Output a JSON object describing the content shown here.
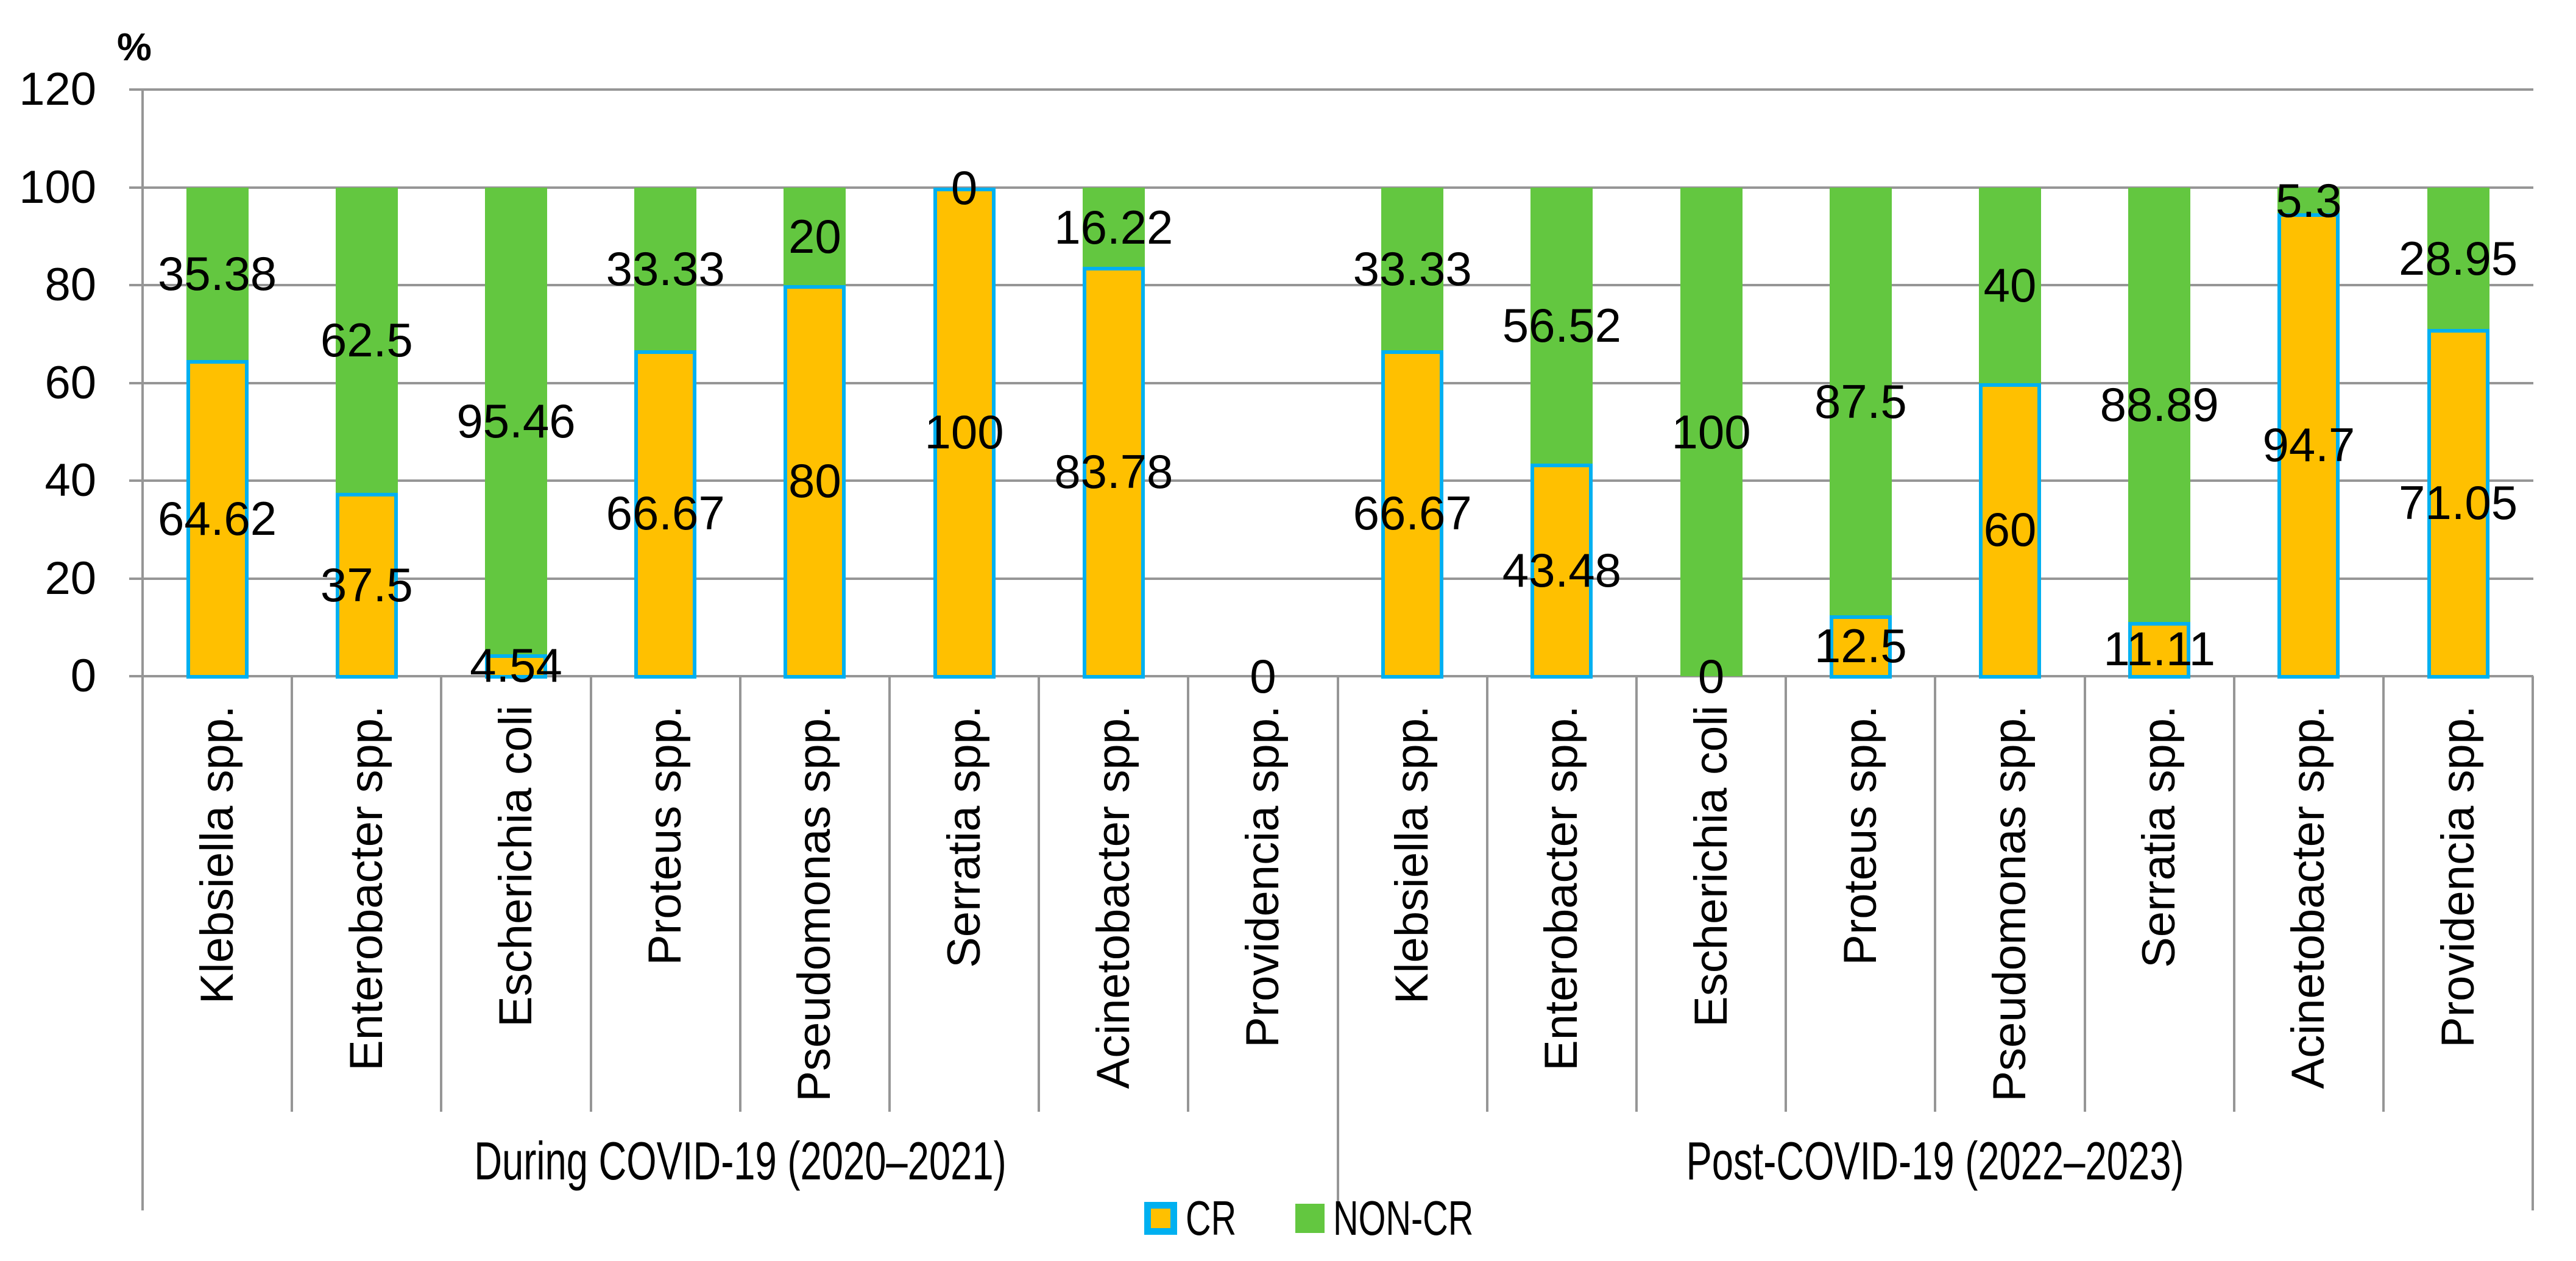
{
  "page": {
    "background": "#FFFFFF"
  },
  "colors": {
    "cr_fill": "#FFC000",
    "cr_border": "#00B0F0",
    "noncr_fill": "#63C740",
    "gridline": "#969696",
    "text": "#000000"
  },
  "y_axis": {
    "unit": "%",
    "tick_labels": [
      "0",
      "20",
      "40",
      "60",
      "80",
      "100",
      "120"
    ]
  },
  "legend": {
    "position": "bottom",
    "items": [
      {
        "label": "CR",
        "fill": "#FFC000",
        "border": "#00B0F0"
      },
      {
        "label": "NON-CR",
        "fill": "#63C740",
        "border": ""
      }
    ]
  },
  "chart_data": {
    "type": "bar",
    "stacked": true,
    "orientation": "vertical",
    "grid": true,
    "legend_position": "bottom",
    "title": "",
    "xlabel": "",
    "ylabel": "%",
    "ylim": [
      0,
      120
    ],
    "yticks": [
      0,
      20,
      40,
      60,
      80,
      100,
      120
    ],
    "series_names": [
      "CR",
      "NON-CR"
    ],
    "groups": [
      {
        "label": "During COVID-19 (2020–2021)",
        "categories": [
          "Klebsiella spp.",
          "Enterobacter spp.",
          "Escherichia coli",
          "Proteus spp.",
          "Pseudomonas spp.",
          "Serratia spp.",
          "Acinetobacter spp.",
          "Providencia spp."
        ],
        "series": [
          {
            "name": "CR",
            "values": [
              64.62,
              37.5,
              4.54,
              66.67,
              80,
              100,
              83.78,
              0
            ]
          },
          {
            "name": "NON-CR",
            "values": [
              35.38,
              62.5,
              95.46,
              33.33,
              20,
              0,
              16.22,
              0
            ]
          }
        ]
      },
      {
        "label": "Post-COVID-19 (2022–2023)",
        "categories": [
          "Klebsiella spp.",
          "Enterobacter spp.",
          "Escherichia coli",
          "Proteus spp.",
          "Pseudomonas spp.",
          "Serratia spp.",
          "Acinetobacter spp.",
          "Providencia spp."
        ],
        "series": [
          {
            "name": "CR",
            "values": [
              66.67,
              43.48,
              0,
              12.5,
              60,
              11.11,
              94.7,
              71.05
            ]
          },
          {
            "name": "NON-CR",
            "values": [
              33.33,
              56.52,
              100,
              87.5,
              40,
              88.89,
              5.3,
              28.95
            ]
          }
        ]
      }
    ]
  }
}
